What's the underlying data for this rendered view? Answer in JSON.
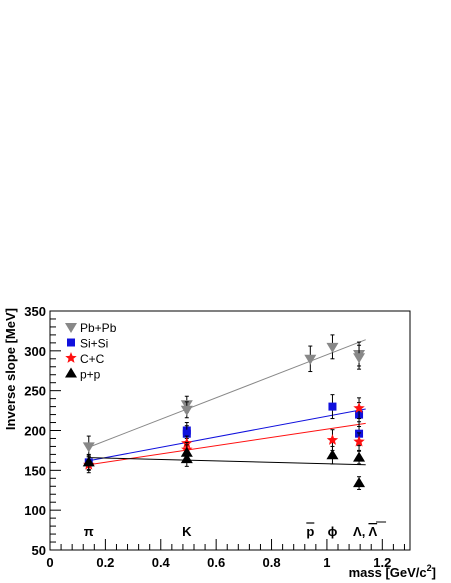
{
  "chart_data": {
    "type": "scatter",
    "xlabel": "mass [GeV/c",
    "xlabel_sup": "2",
    "xlabel_close": "]",
    "ylabel": "Inverse slope [MeV]",
    "xlim": [
      0,
      1.3
    ],
    "ylim": [
      50,
      350
    ],
    "xticks": [
      0,
      0.2,
      0.4,
      0.6,
      0.8,
      1,
      1.2
    ],
    "xtick_labels": [
      "0",
      "0.2",
      "0.4",
      "0.6",
      "0.8",
      "1",
      "1.2"
    ],
    "yticks": [
      50,
      100,
      150,
      200,
      250,
      300,
      350
    ],
    "ytick_labels": [
      "50",
      "100",
      "150",
      "200",
      "250",
      "300",
      "350"
    ],
    "grid": false,
    "legend_position": "top-left",
    "particle_labels": [
      {
        "x": 0.14,
        "text": "π"
      },
      {
        "x": 0.494,
        "text": "K"
      },
      {
        "x": 0.94,
        "text": "p",
        "overline": true
      },
      {
        "x": 1.02,
        "text": "ϕ"
      },
      {
        "x": 1.116,
        "text": "Λ, ",
        "bar_text": "Λ"
      }
    ],
    "series": [
      {
        "name": "Pb+Pb",
        "marker": "triangle-down",
        "color": "#888888",
        "fit": {
          "x": [
            0.14,
            1.14
          ],
          "y": [
            179,
            314
          ],
          "color": "#888888"
        },
        "points": [
          {
            "x": 0.14,
            "y": 180,
            "err": 13
          },
          {
            "x": 0.494,
            "y": 233,
            "err": 10
          },
          {
            "x": 0.494,
            "y": 226,
            "err": 10
          },
          {
            "x": 0.94,
            "y": 290,
            "err": 16
          },
          {
            "x": 1.02,
            "y": 305,
            "err": 15
          },
          {
            "x": 1.116,
            "y": 296,
            "err": 15
          },
          {
            "x": 1.116,
            "y": 292,
            "err": 15
          }
        ]
      },
      {
        "name": "Si+Si",
        "marker": "square",
        "color": "#1010dd",
        "fit": {
          "x": [
            0.14,
            1.14
          ],
          "y": [
            162,
            227
          ],
          "color": "#1010dd"
        },
        "points": [
          {
            "x": 0.14,
            "y": 160,
            "err": 9
          },
          {
            "x": 0.494,
            "y": 200,
            "err": 10
          },
          {
            "x": 0.494,
            "y": 196,
            "err": 10
          },
          {
            "x": 1.02,
            "y": 230,
            "err": 15
          },
          {
            "x": 1.116,
            "y": 220,
            "err": 15
          },
          {
            "x": 1.116,
            "y": 196,
            "err": 15
          }
        ]
      },
      {
        "name": "C+C",
        "marker": "star",
        "color": "#ff1010",
        "fit": {
          "x": [
            0.14,
            1.14
          ],
          "y": [
            157,
            209
          ],
          "color": "#ff1010"
        },
        "points": [
          {
            "x": 0.14,
            "y": 157,
            "err": 10
          },
          {
            "x": 0.494,
            "y": 184,
            "err": 9
          },
          {
            "x": 0.494,
            "y": 176,
            "err": 9
          },
          {
            "x": 1.02,
            "y": 188,
            "err": 13
          },
          {
            "x": 1.116,
            "y": 228,
            "err": 13
          },
          {
            "x": 1.116,
            "y": 186,
            "err": 11
          }
        ]
      },
      {
        "name": "p+p",
        "marker": "triangle-up",
        "color": "#000000",
        "fit": {
          "x": [
            0.14,
            1.14
          ],
          "y": [
            166,
            157
          ],
          "color": "#000000"
        },
        "points": [
          {
            "x": 0.14,
            "y": 160,
            "err": 10
          },
          {
            "x": 0.494,
            "y": 172,
            "err": 10
          },
          {
            "x": 0.494,
            "y": 164,
            "err": 9
          },
          {
            "x": 1.02,
            "y": 169,
            "err": 11
          },
          {
            "x": 1.116,
            "y": 166,
            "err": 8
          },
          {
            "x": 1.116,
            "y": 134,
            "err": 8
          }
        ]
      }
    ]
  }
}
